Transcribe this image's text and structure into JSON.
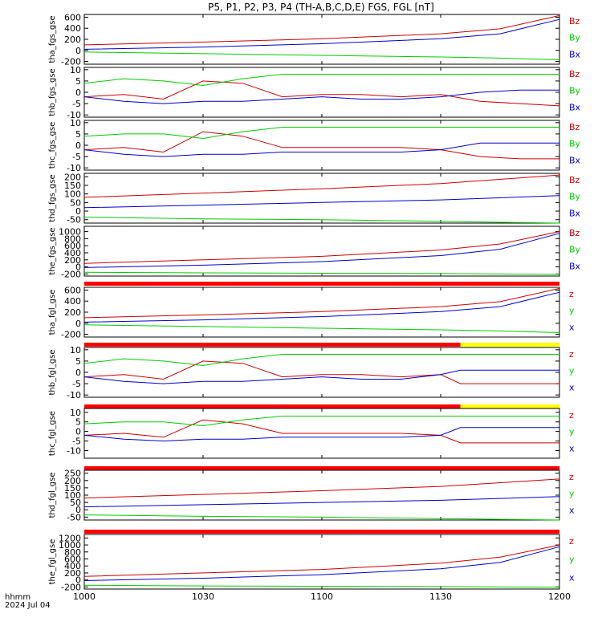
{
  "title": "P5, P1, P2, P3, P4 (TH-A,B,C,D,E) FGS, FGL [nT]",
  "time_axis": {
    "label_line1": "hhmm",
    "label_line2": "2024 Jul 04",
    "ticks": [
      "1000",
      "1030",
      "1100",
      "1130",
      "1200"
    ]
  },
  "colors": {
    "x": "#0000cc",
    "y": "#00cc00",
    "z": "#cc0000",
    "red_bar": "#ff0000",
    "yellow_bar": "#ffff00"
  },
  "chart_data": [
    {
      "type": "line",
      "ylabel": "tha_fgs_gse",
      "ylim": [
        -250,
        650
      ],
      "yticks": [
        "600",
        "400",
        "200",
        "0",
        "-200"
      ],
      "legend": [
        "Bz",
        "By",
        "Bx"
      ],
      "series": [
        {
          "name": "Bz",
          "x": [
            1000,
            1030,
            1100,
            1130,
            1145,
            1200
          ],
          "y": [
            100,
            150,
            210,
            300,
            390,
            630
          ]
        },
        {
          "name": "By",
          "x": [
            1000,
            1030,
            1100,
            1130,
            1145,
            1200
          ],
          "y": [
            -30,
            -60,
            -90,
            -120,
            -140,
            -170
          ]
        },
        {
          "name": "Bx",
          "x": [
            1000,
            1030,
            1100,
            1130,
            1145,
            1200
          ],
          "y": [
            20,
            60,
            120,
            210,
            300,
            560
          ]
        }
      ]
    },
    {
      "type": "line",
      "ylabel": "thb_fgs_gse",
      "ylim": [
        -11,
        11
      ],
      "yticks": [
        "10",
        "5",
        "0",
        "-5",
        "-10"
      ],
      "legend": [
        "Bz",
        "By",
        "Bx"
      ],
      "series": [
        {
          "name": "Bz",
          "x": [
            1000,
            1010,
            1020,
            1030,
            1040,
            1050,
            1100,
            1110,
            1120,
            1130,
            1140,
            1150,
            1200
          ],
          "y": [
            -2,
            -1,
            -3,
            5,
            4,
            -2,
            -1,
            -1,
            -2,
            -1,
            -4,
            -5,
            -6
          ]
        },
        {
          "name": "By",
          "x": [
            1000,
            1010,
            1020,
            1030,
            1040,
            1050,
            1100,
            1110,
            1120,
            1130,
            1140,
            1150,
            1200
          ],
          "y": [
            4,
            6,
            5,
            3,
            6,
            8,
            8,
            8,
            8,
            8,
            8,
            8,
            8
          ]
        },
        {
          "name": "Bx",
          "x": [
            1000,
            1010,
            1020,
            1030,
            1040,
            1050,
            1100,
            1110,
            1120,
            1130,
            1140,
            1150,
            1200
          ],
          "y": [
            -2,
            -4,
            -5,
            -4,
            -4,
            -3,
            -2,
            -3,
            -3,
            -2,
            0,
            1,
            1
          ]
        }
      ]
    },
    {
      "type": "line",
      "ylabel": "thc_fgs_gse",
      "ylim": [
        -11,
        11
      ],
      "yticks": [
        "10",
        "5",
        "0",
        "-5",
        "-10"
      ],
      "legend": [
        "Bz",
        "By",
        "Bx"
      ],
      "series": [
        {
          "name": "Bz",
          "x": [
            1000,
            1010,
            1020,
            1030,
            1040,
            1050,
            1100,
            1110,
            1120,
            1130,
            1140,
            1150,
            1200
          ],
          "y": [
            -2,
            -1,
            -3,
            6,
            4,
            -1,
            -1,
            -1,
            -1,
            -2,
            -5,
            -6,
            -6
          ]
        },
        {
          "name": "By",
          "x": [
            1000,
            1010,
            1020,
            1030,
            1040,
            1050,
            1100,
            1110,
            1120,
            1130,
            1140,
            1150,
            1200
          ],
          "y": [
            4,
            5,
            5,
            3,
            6,
            8,
            8,
            8,
            8,
            8,
            8,
            8,
            8
          ]
        },
        {
          "name": "Bx",
          "x": [
            1000,
            1010,
            1020,
            1030,
            1040,
            1050,
            1100,
            1110,
            1120,
            1130,
            1140,
            1150,
            1200
          ],
          "y": [
            -2,
            -4,
            -5,
            -4,
            -4,
            -3,
            -3,
            -3,
            -3,
            -2,
            1,
            1,
            1
          ]
        }
      ]
    },
    {
      "type": "line",
      "ylabel": "thd_fgs_gse",
      "ylim": [
        -70,
        220
      ],
      "yticks": [
        "200",
        "150",
        "100",
        "50",
        "0",
        "-50"
      ],
      "legend": [
        "Bz",
        "By",
        "Bx"
      ],
      "series": [
        {
          "name": "Bz",
          "x": [
            1000,
            1030,
            1100,
            1130,
            1200
          ],
          "y": [
            80,
            105,
            130,
            160,
            210
          ]
        },
        {
          "name": "By",
          "x": [
            1000,
            1030,
            1100,
            1130,
            1200
          ],
          "y": [
            -35,
            -45,
            -50,
            -60,
            -70
          ]
        },
        {
          "name": "Bx",
          "x": [
            1000,
            1030,
            1100,
            1130,
            1200
          ],
          "y": [
            20,
            35,
            50,
            65,
            90
          ]
        }
      ]
    },
    {
      "type": "line",
      "ylabel": "the_fgs_gse",
      "ylim": [
        -260,
        1150
      ],
      "yticks": [
        "1000",
        "800",
        "600",
        "400",
        "200",
        "0",
        "-200"
      ],
      "legend": [
        "Bz",
        "By",
        "Bx"
      ],
      "series": [
        {
          "name": "Bz",
          "x": [
            1000,
            1030,
            1100,
            1130,
            1145,
            1200
          ],
          "y": [
            100,
            200,
            300,
            480,
            650,
            1000
          ]
        },
        {
          "name": "By",
          "x": [
            1000,
            1030,
            1100,
            1130,
            1145,
            1200
          ],
          "y": [
            -150,
            -170,
            -180,
            -190,
            -200,
            -210
          ]
        },
        {
          "name": "Bx",
          "x": [
            1000,
            1030,
            1100,
            1130,
            1145,
            1200
          ],
          "y": [
            -20,
            50,
            150,
            320,
            500,
            950
          ]
        }
      ]
    },
    {
      "type": "line",
      "ylabel": "tha_fgl_gse",
      "ylim": [
        -250,
        650
      ],
      "yticks": [
        "600",
        "400",
        "200",
        "0",
        "-200"
      ],
      "legend": [
        "z",
        "y",
        "x"
      ],
      "bar": {
        "red_until": 1200
      },
      "series": [
        {
          "name": "z",
          "x": [
            1000,
            1030,
            1100,
            1130,
            1145,
            1200
          ],
          "y": [
            100,
            150,
            210,
            300,
            390,
            630
          ]
        },
        {
          "name": "y",
          "x": [
            1000,
            1030,
            1100,
            1130,
            1145,
            1200
          ],
          "y": [
            -30,
            -60,
            -90,
            -120,
            -140,
            -170
          ]
        },
        {
          "name": "x",
          "x": [
            1000,
            1030,
            1100,
            1130,
            1145,
            1200
          ],
          "y": [
            20,
            60,
            120,
            210,
            300,
            560
          ]
        }
      ]
    },
    {
      "type": "line",
      "ylabel": "thb_fgl_gse",
      "ylim": [
        -11,
        11
      ],
      "yticks": [
        "10",
        "5",
        "0",
        "-5",
        "-10"
      ],
      "legend": [
        "z",
        "y",
        "x"
      ],
      "bar": {
        "red_until": 1135
      },
      "series": [
        {
          "name": "z",
          "x": [
            1000,
            1010,
            1020,
            1030,
            1040,
            1050,
            1100,
            1110,
            1120,
            1130,
            1135,
            1200
          ],
          "y": [
            -2,
            -1,
            -3,
            5,
            4,
            -2,
            -1,
            -1,
            -2,
            -1,
            -5,
            -5
          ]
        },
        {
          "name": "y",
          "x": [
            1000,
            1010,
            1020,
            1030,
            1040,
            1050,
            1100,
            1110,
            1120,
            1130,
            1135,
            1200
          ],
          "y": [
            4,
            6,
            5,
            3,
            6,
            8,
            8,
            8,
            8,
            8,
            8,
            8
          ]
        },
        {
          "name": "x",
          "x": [
            1000,
            1010,
            1020,
            1030,
            1040,
            1050,
            1100,
            1110,
            1120,
            1130,
            1135,
            1200
          ],
          "y": [
            -2,
            -4,
            -5,
            -4,
            -4,
            -3,
            -2,
            -3,
            -3,
            -1,
            1,
            1
          ]
        }
      ]
    },
    {
      "type": "line",
      "ylabel": "thc_fgl_gse",
      "ylim": [
        -14,
        12
      ],
      "yticks": [
        "10",
        "5",
        "0",
        "-5",
        "-10"
      ],
      "legend": [
        "z",
        "y",
        "x"
      ],
      "bar": {
        "red_until": 1135
      },
      "series": [
        {
          "name": "z",
          "x": [
            1000,
            1010,
            1020,
            1030,
            1040,
            1050,
            1100,
            1110,
            1120,
            1130,
            1135,
            1200
          ],
          "y": [
            -2,
            -1,
            -3,
            6,
            4,
            -1,
            -1,
            -1,
            -1,
            -2,
            -6,
            -6
          ]
        },
        {
          "name": "y",
          "x": [
            1000,
            1010,
            1020,
            1030,
            1040,
            1050,
            1100,
            1110,
            1120,
            1130,
            1135,
            1200
          ],
          "y": [
            4,
            5,
            5,
            3,
            6,
            8,
            8,
            8,
            8,
            8,
            8,
            8
          ]
        },
        {
          "name": "x",
          "x": [
            1000,
            1010,
            1020,
            1030,
            1040,
            1050,
            1100,
            1110,
            1120,
            1130,
            1135,
            1200
          ],
          "y": [
            -2,
            -4,
            -5,
            -4,
            -4,
            -3,
            -3,
            -3,
            -3,
            -2,
            2,
            2
          ]
        }
      ]
    },
    {
      "type": "line",
      "ylabel": "thd_fgl_gse",
      "ylim": [
        -70,
        270
      ],
      "yticks": [
        "250",
        "200",
        "150",
        "100",
        "50",
        "0",
        "-50"
      ],
      "legend": [
        "z",
        "y",
        "x"
      ],
      "bar": {
        "red_until": 1200
      },
      "series": [
        {
          "name": "z",
          "x": [
            1000,
            1030,
            1100,
            1130,
            1200
          ],
          "y": [
            80,
            105,
            130,
            160,
            210
          ]
        },
        {
          "name": "y",
          "x": [
            1000,
            1030,
            1100,
            1130,
            1200
          ],
          "y": [
            -35,
            -45,
            -50,
            -60,
            -70
          ]
        },
        {
          "name": "x",
          "x": [
            1000,
            1030,
            1100,
            1130,
            1200
          ],
          "y": [
            20,
            35,
            50,
            65,
            90
          ]
        }
      ]
    },
    {
      "type": "line",
      "ylabel": "the_fgl_gse",
      "ylim": [
        -260,
        1300
      ],
      "yticks": [
        "1200",
        "1000",
        "800",
        "600",
        "400",
        "200",
        "0",
        "-200"
      ],
      "legend": [
        "z",
        "y",
        "x"
      ],
      "bar": {
        "red_until": 1200
      },
      "series": [
        {
          "name": "z",
          "x": [
            1000,
            1030,
            1100,
            1130,
            1145,
            1200
          ],
          "y": [
            100,
            200,
            300,
            480,
            650,
            1000
          ]
        },
        {
          "name": "y",
          "x": [
            1000,
            1030,
            1100,
            1130,
            1145,
            1200
          ],
          "y": [
            -150,
            -170,
            -180,
            -190,
            -200,
            -210
          ]
        },
        {
          "name": "x",
          "x": [
            1000,
            1030,
            1100,
            1130,
            1145,
            1200
          ],
          "y": [
            -20,
            50,
            150,
            320,
            500,
            950
          ]
        }
      ]
    }
  ]
}
